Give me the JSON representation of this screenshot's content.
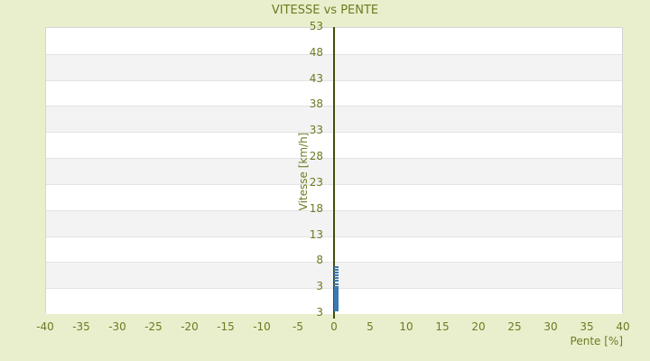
{
  "page": {
    "background_color": "#e9efcc",
    "text_color": "#6e7a22"
  },
  "chart_data": {
    "type": "scatter",
    "title": "VITESSE vs PENTE",
    "xlabel": "Pente [%]",
    "ylabel": "Vitesse [km/h]",
    "legend": "none",
    "grid": "horizontal-bands",
    "x_axis": {
      "min": -40,
      "max": 40,
      "tick_step": 5,
      "tick_labels": [
        "-40",
        "-35",
        "-30",
        "-25",
        "-20",
        "-15",
        "-10",
        "-5",
        "0",
        "5",
        "10",
        "15",
        "20",
        "25",
        "30",
        "35",
        "40"
      ]
    },
    "y_axis": {
      "min": -2,
      "max": 53,
      "tick_step": 5,
      "tick_labels_as_rendered": [
        "53",
        "48",
        "43",
        "38",
        "33",
        "28",
        "23",
        "18",
        "13",
        "8",
        "3",
        "3"
      ]
    },
    "zero_line_color": "#464c08",
    "band_colors": [
      "#ffffff",
      "#f3f3f3"
    ],
    "gridline_color": "#e3e3e3",
    "plot_border_color": "#d5d5d5",
    "series": [
      {
        "name": "vitesse-points",
        "color": "#3c7ab2",
        "points": [
          {
            "x": 0.2,
            "y": 6.9
          },
          {
            "x": 0.3,
            "y": 6.3
          },
          {
            "x": 0.2,
            "y": 5.8
          },
          {
            "x": 0.3,
            "y": 5.3
          },
          {
            "x": 0.2,
            "y": 4.8
          },
          {
            "x": 0.3,
            "y": 4.3
          },
          {
            "x": 0.2,
            "y": 3.6
          },
          {
            "x": 0.3,
            "y": 3.0
          },
          {
            "x": 0.2,
            "y": 2.7
          },
          {
            "x": 0.3,
            "y": 2.3
          },
          {
            "x": 0.2,
            "y": 2.0
          },
          {
            "x": 0.3,
            "y": 1.7
          },
          {
            "x": 0.2,
            "y": 1.3
          },
          {
            "x": 0.3,
            "y": 1.0
          },
          {
            "x": 0.2,
            "y": 0.6
          },
          {
            "x": 0.3,
            "y": 0.3
          },
          {
            "x": 0.2,
            "y": -0.1
          },
          {
            "x": 0.3,
            "y": -0.4
          },
          {
            "x": 0.2,
            "y": -0.8
          },
          {
            "x": 0.3,
            "y": -1.1
          },
          {
            "x": 0.2,
            "y": -1.5
          }
        ]
      }
    ]
  }
}
